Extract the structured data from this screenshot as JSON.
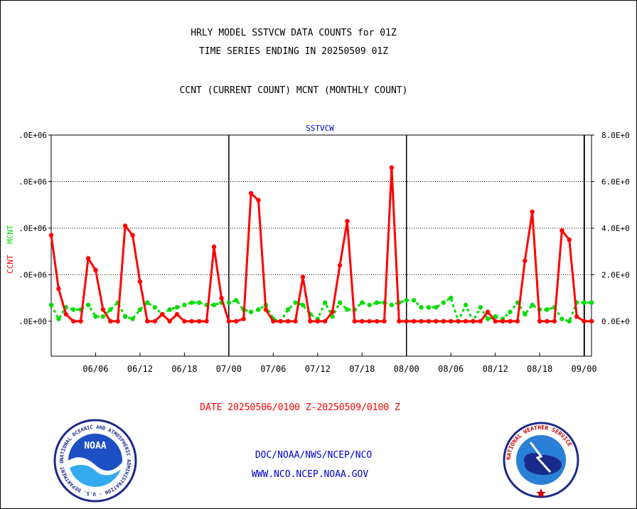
{
  "header": {
    "line1": "HRLY MODEL SSTVCW DATA COUNTS for 01Z",
    "line2": "TIME SERIES ENDING IN 20250509 01Z",
    "line3": "CCNT (CURRENT COUNT) MCNT (MONTHLY COUNT)"
  },
  "footer": {
    "date_range": "DATE 20250506/0100 Z-20250509/0100 Z",
    "org": "DOC/NOAA/NWS/NCEP/NCO",
    "url": "WWW.NCO.NCEP.NOAA.GOV"
  },
  "logos": {
    "noaa_text": "NOAA",
    "noaa_ring": "NATIONAL OCEANIC AND ATMOSPHERIC ADMINISTRATION · U.S. DEPARTMENT OF COMMERCE ·",
    "nws_ring": "NATIONAL WEATHER SERVICE"
  },
  "colors": {
    "ccnt": "#ff0000",
    "mcnt": "#00dd00",
    "title_blue": "#0000cc"
  },
  "chart_data": {
    "type": "line",
    "title": "SSTVCW",
    "xlabel": "",
    "ylabel_left": [
      "CCNT",
      "MCNT"
    ],
    "left_tick_labels": [
      ".0E+00",
      ".0E+06",
      ".0E+06",
      ".0E+06",
      ".0E+06"
    ],
    "right_tick_labels": [
      "0.0E+0",
      "2.0E+0",
      "4.0E+0",
      "6.0E+0",
      "8.0E+0"
    ],
    "y_ticks": [
      0,
      2000000,
      4000000,
      6000000,
      8000000
    ],
    "ylim": [
      -1500000,
      8000000
    ],
    "x_tick_labels": [
      "06/06",
      "06/12",
      "06/18",
      "07/00",
      "07/06",
      "07/12",
      "07/18",
      "08/00",
      "08/06",
      "08/12",
      "08/18",
      "09/00"
    ],
    "x_tick_hours": [
      6,
      12,
      18,
      24,
      30,
      36,
      42,
      48,
      54,
      60,
      66,
      72
    ],
    "xlim": [
      0,
      73
    ],
    "day_lines": [
      24,
      48,
      72
    ],
    "grid": true,
    "series": [
      {
        "name": "CCNT",
        "color": "#ff0000",
        "x": [
          0,
          1,
          2,
          3,
          4,
          5,
          6,
          7,
          8,
          9,
          10,
          11,
          12,
          13,
          14,
          15,
          16,
          17,
          18,
          19,
          20,
          21,
          22,
          23,
          24,
          25,
          26,
          27,
          28,
          29,
          30,
          31,
          32,
          33,
          34,
          35,
          36,
          37,
          38,
          39,
          40,
          41,
          42,
          43,
          44,
          45,
          46,
          47,
          48,
          49,
          50,
          51,
          52,
          53,
          54,
          55,
          56,
          57,
          58,
          59,
          60,
          61,
          62,
          63,
          64,
          65,
          66,
          67,
          68,
          69,
          70,
          71,
          72,
          73
        ],
        "values": [
          3700000,
          1400000,
          300000,
          0,
          0,
          2700000,
          2200000,
          500000,
          0,
          0,
          4100000,
          3700000,
          1700000,
          0,
          0,
          300000,
          0,
          300000,
          0,
          0,
          0,
          0,
          3200000,
          1000000,
          0,
          0,
          100000,
          5500000,
          5200000,
          500000,
          0,
          0,
          0,
          0,
          1900000,
          0,
          0,
          0,
          400000,
          2400000,
          4300000,
          0,
          0,
          0,
          0,
          0,
          6600000,
          0,
          0,
          0,
          0,
          0,
          0,
          0,
          0,
          0,
          0,
          0,
          0,
          400000,
          0,
          0,
          0,
          0,
          2600000,
          4700000,
          0,
          0,
          0,
          3900000,
          3500000,
          200000,
          0,
          0
        ]
      },
      {
        "name": "MCNT",
        "color": "#00dd00",
        "x": [
          0,
          1,
          2,
          3,
          4,
          5,
          6,
          7,
          8,
          9,
          10,
          11,
          12,
          13,
          14,
          15,
          16,
          17,
          18,
          19,
          20,
          21,
          22,
          23,
          24,
          25,
          26,
          27,
          28,
          29,
          30,
          31,
          32,
          33,
          34,
          35,
          36,
          37,
          38,
          39,
          40,
          41,
          42,
          43,
          44,
          45,
          46,
          47,
          48,
          49,
          50,
          51,
          52,
          53,
          54,
          55,
          56,
          57,
          58,
          59,
          60,
          61,
          62,
          63,
          64,
          65,
          66,
          67,
          68,
          69,
          70,
          71,
          72,
          73
        ],
        "values": [
          700000,
          100000,
          600000,
          500000,
          500000,
          700000,
          200000,
          200000,
          500000,
          800000,
          200000,
          100000,
          500000,
          800000,
          600000,
          300000,
          500000,
          600000,
          700000,
          800000,
          800000,
          700000,
          700000,
          800000,
          800000,
          900000,
          500000,
          400000,
          500000,
          700000,
          100000,
          0,
          500000,
          800000,
          700000,
          300000,
          100000,
          800000,
          200000,
          800000,
          500000,
          500000,
          800000,
          700000,
          800000,
          800000,
          700000,
          800000,
          900000,
          900000,
          600000,
          600000,
          600000,
          800000,
          1000000,
          0,
          700000,
          0,
          600000,
          100000,
          200000,
          100000,
          400000,
          800000,
          300000,
          700000,
          500000,
          500000,
          600000,
          100000,
          0,
          800000,
          800000,
          800000
        ]
      }
    ]
  }
}
